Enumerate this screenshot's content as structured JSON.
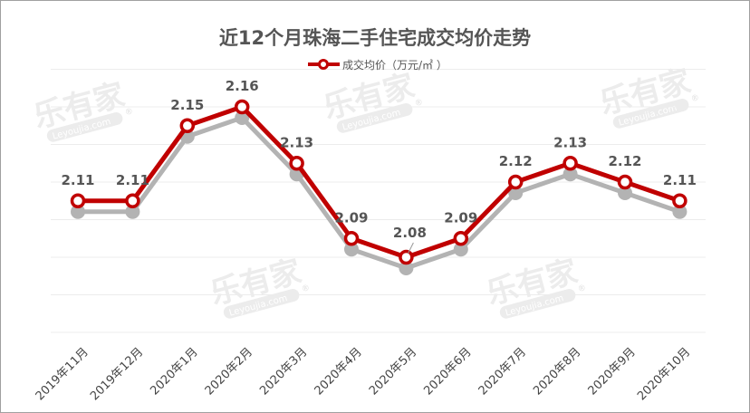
{
  "chart_data": {
    "type": "line",
    "title": "近12个月珠海二手住宅成交均价走势",
    "categories": [
      "2019年11月",
      "2019年12月",
      "2020年1月",
      "2020年2月",
      "2020年3月",
      "2020年4月",
      "2020年5月",
      "2020年6月",
      "2020年7月",
      "2020年8月",
      "2020年9月",
      "2020年10月"
    ],
    "series": [
      {
        "name": "成交均价（万元/㎡ ）",
        "values": [
          2.11,
          2.11,
          2.15,
          2.16,
          2.13,
          2.09,
          2.08,
          2.09,
          2.12,
          2.13,
          2.12,
          2.11
        ],
        "color": "#c00000",
        "shadow_color": "#b3b3b3"
      }
    ],
    "ylim": [
      2.02,
      2.18
    ],
    "y_gridlines": [
      2.04,
      2.06,
      2.08,
      2.1,
      2.12,
      2.14,
      2.16,
      2.18
    ],
    "grid": true,
    "y_axis_labels_shown": false,
    "legend_position": "top",
    "data_labels": true
  },
  "watermark": {
    "text": "乐有家",
    "sub": "Leyoujia.com",
    "mark": "®"
  }
}
